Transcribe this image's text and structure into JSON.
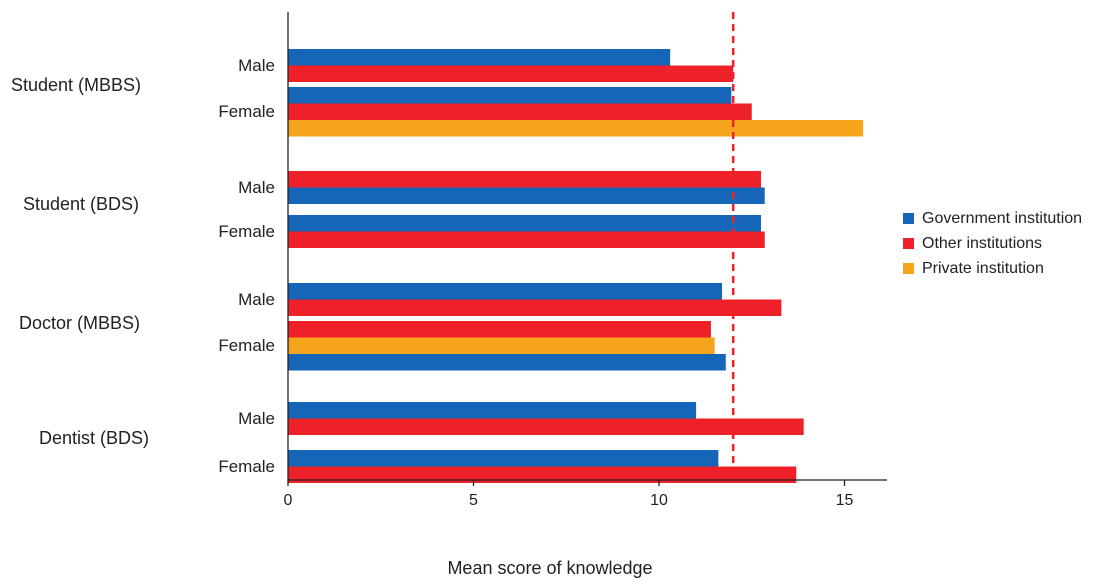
{
  "colors": {
    "government": "#1565b8",
    "other": "#ee2128",
    "private": "#f5a41c",
    "reference_line": "#ee2128"
  },
  "chart_data": {
    "type": "bar",
    "orientation": "horizontal",
    "title": "",
    "xlabel": "Mean score of knowledge",
    "ylabel": "",
    "xlim": [
      0,
      16.2
    ],
    "xticks": [
      0,
      5,
      10,
      15
    ],
    "reference_line": 12,
    "legend_position": "right",
    "legend": [
      {
        "key": "government",
        "label": "Government institution"
      },
      {
        "key": "other",
        "label": "Other institutions"
      },
      {
        "key": "private",
        "label": "Private institution"
      }
    ],
    "groups": [
      {
        "name": "Student (MBBS)",
        "subgroups": [
          {
            "name": "Male",
            "bars": [
              {
                "series": "government",
                "value": 10.3
              },
              {
                "series": "other",
                "value": 12.0
              }
            ]
          },
          {
            "name": "Female",
            "bars": [
              {
                "series": "government",
                "value": 11.95
              },
              {
                "series": "other",
                "value": 12.5
              },
              {
                "series": "private",
                "value": 15.5
              }
            ]
          }
        ]
      },
      {
        "name": "Student (BDS)",
        "subgroups": [
          {
            "name": "Male",
            "bars": [
              {
                "series": "other",
                "value": 12.75
              },
              {
                "series": "government",
                "value": 12.85
              }
            ]
          },
          {
            "name": "Female",
            "bars": [
              {
                "series": "government",
                "value": 12.75
              },
              {
                "series": "other",
                "value": 12.85
              }
            ]
          }
        ]
      },
      {
        "name": "Doctor (MBBS)",
        "subgroups": [
          {
            "name": "Male",
            "bars": [
              {
                "series": "government",
                "value": 11.7
              },
              {
                "series": "other",
                "value": 13.3
              }
            ]
          },
          {
            "name": "Female",
            "bars": [
              {
                "series": "other",
                "value": 11.4
              },
              {
                "series": "private",
                "value": 11.5
              },
              {
                "series": "government",
                "value": 11.8
              }
            ]
          }
        ]
      },
      {
        "name": "Dentist (BDS)",
        "subgroups": [
          {
            "name": "Male",
            "bars": [
              {
                "series": "government",
                "value": 11.0
              },
              {
                "series": "other",
                "value": 13.9
              }
            ]
          },
          {
            "name": "Female",
            "bars": [
              {
                "series": "government",
                "value": 11.6
              },
              {
                "series": "other",
                "value": 13.7
              }
            ]
          }
        ]
      }
    ]
  }
}
